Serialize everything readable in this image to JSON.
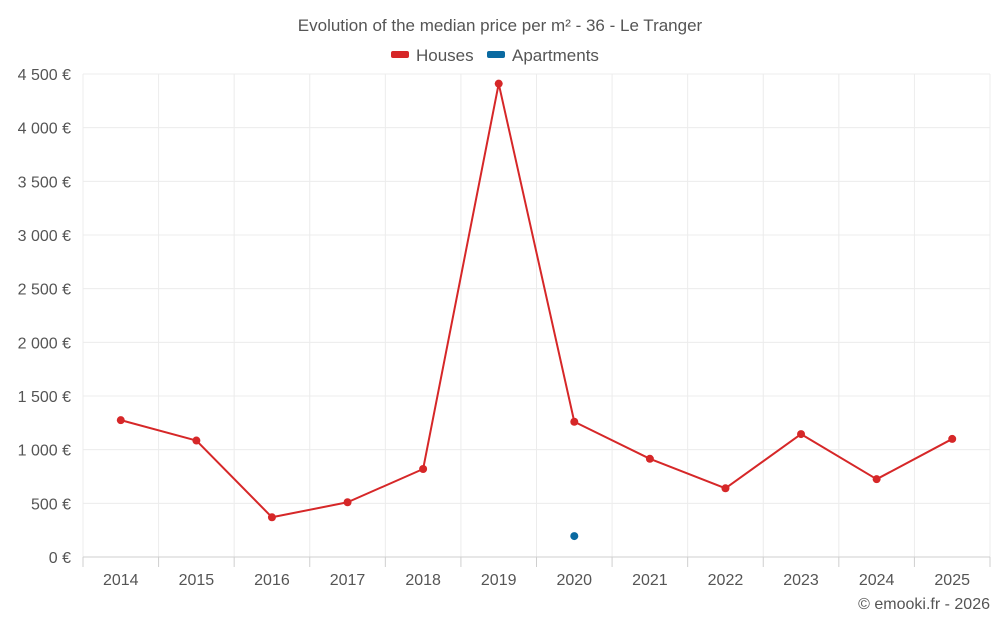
{
  "chart_data": {
    "type": "line",
    "title": "Evolution of the median price per m² - 36 - Le Tranger",
    "categories": [
      "2014",
      "2015",
      "2016",
      "2017",
      "2018",
      "2019",
      "2020",
      "2021",
      "2022",
      "2023",
      "2024",
      "2025"
    ],
    "series": [
      {
        "name": "Houses",
        "color": "#d62728",
        "values": [
          1275,
          1085,
          370,
          510,
          820,
          4410,
          1260,
          915,
          640,
          1145,
          725,
          1100
        ]
      },
      {
        "name": "Apartments",
        "color": "#0a6aa1",
        "values": [
          null,
          null,
          null,
          null,
          null,
          null,
          195,
          null,
          null,
          null,
          null,
          null
        ]
      }
    ],
    "ylim": [
      0,
      4500
    ],
    "yticks": [
      0,
      500,
      1000,
      1500,
      2000,
      2500,
      3000,
      3500,
      4000,
      4500
    ],
    "ytick_labels": [
      "0 €",
      "500 €",
      "1 000 €",
      "1 500 €",
      "2 000 €",
      "2 500 €",
      "3 000 €",
      "3 500 €",
      "4 000 €",
      "4 500 €"
    ],
    "grid": true,
    "legend_position": "top-center",
    "credit": "© emooki.fr - 2026"
  }
}
